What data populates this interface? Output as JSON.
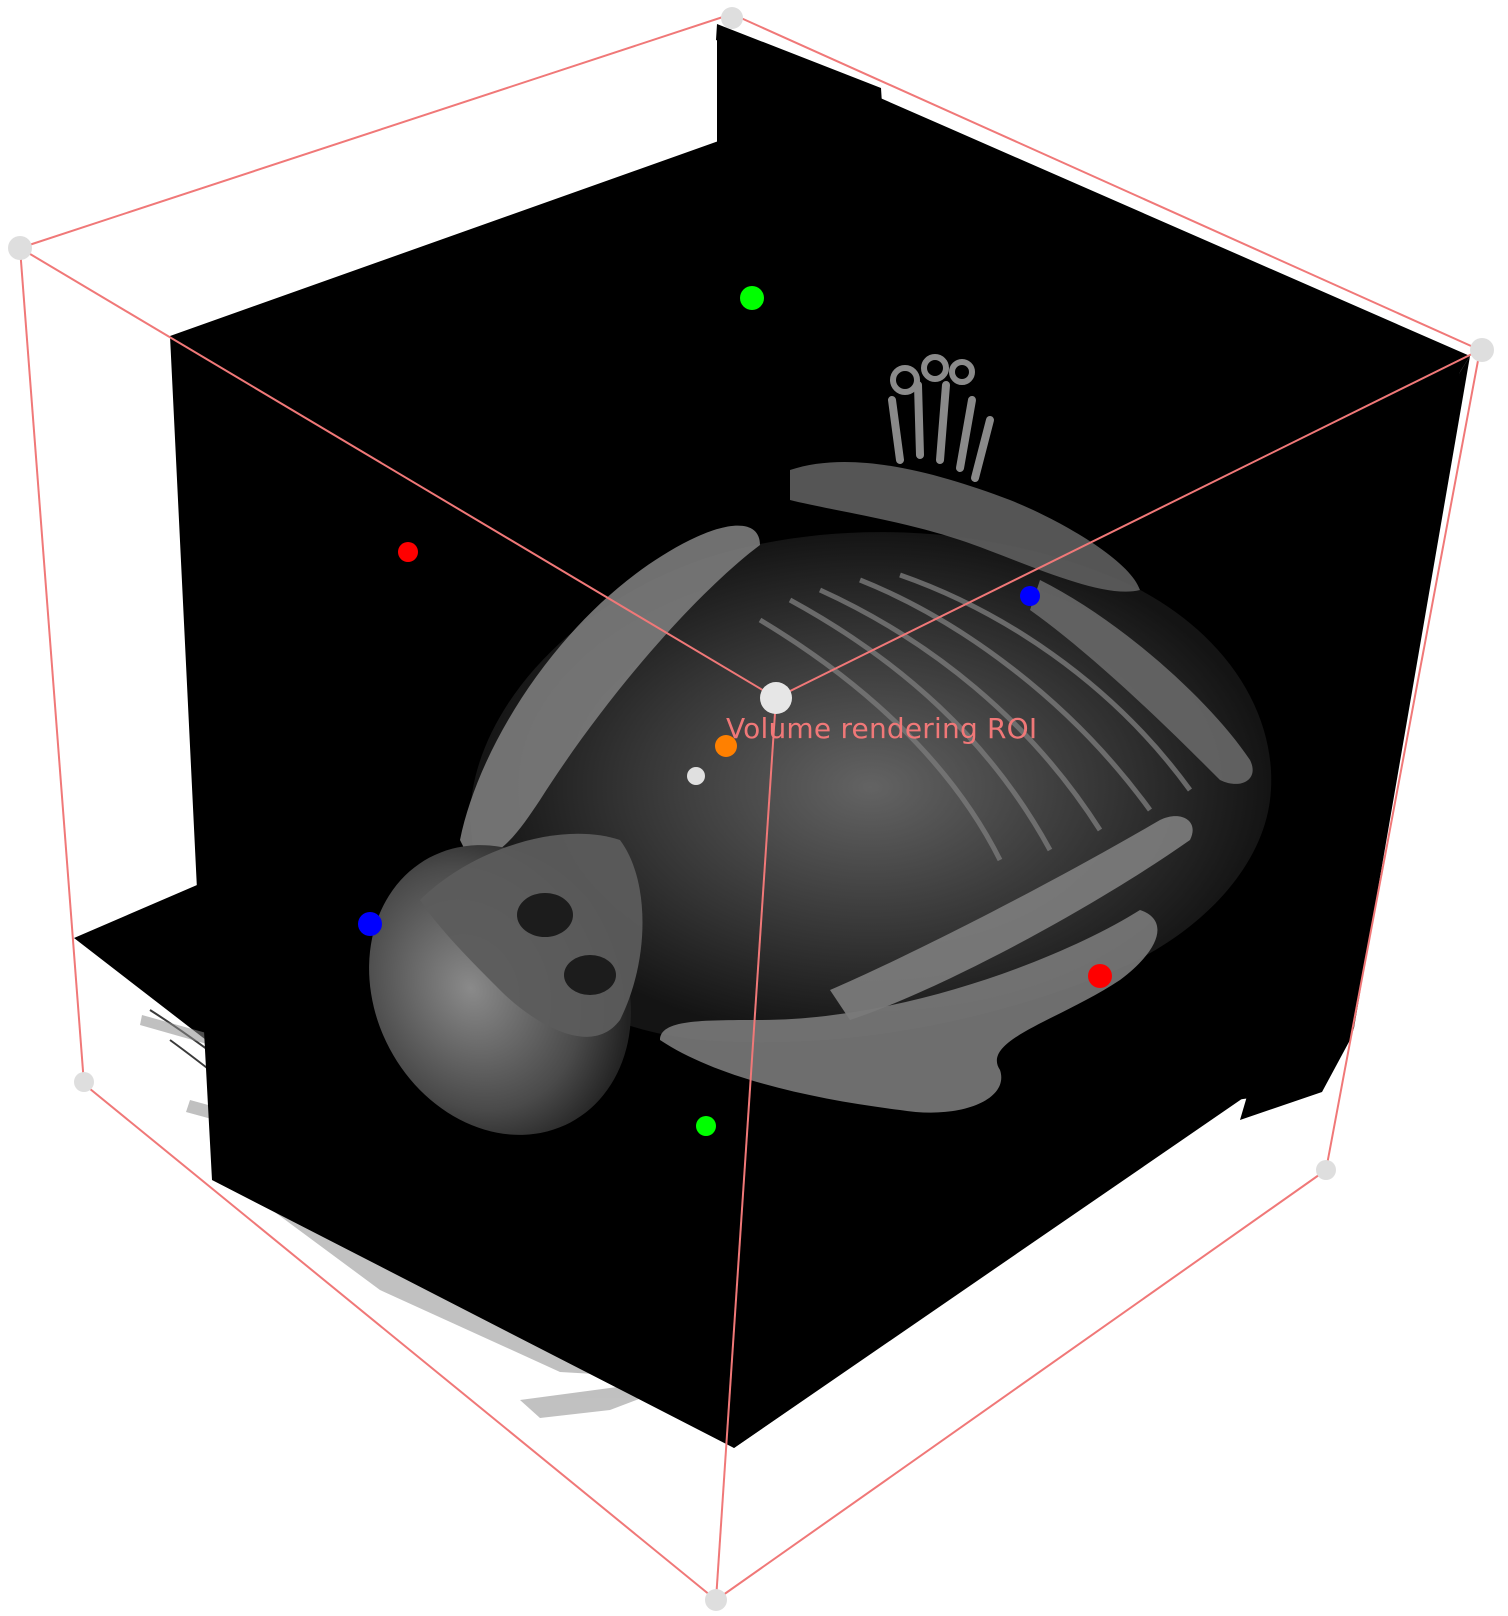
{
  "view": {
    "background": "#ffffff",
    "slice_color": "#000000",
    "anatomy_color": "#9a9a9a"
  },
  "roi": {
    "label": "Volume rendering ROI",
    "color": "#f07878",
    "handle_color": "#dedede",
    "center_handle_color": "#e6e6e6"
  },
  "markers": {
    "colors": {
      "red": "#ff0000",
      "green": "#00ff00",
      "blue": "#0000ff",
      "orange": "#ff8000",
      "white": "#e0e0e0"
    }
  }
}
